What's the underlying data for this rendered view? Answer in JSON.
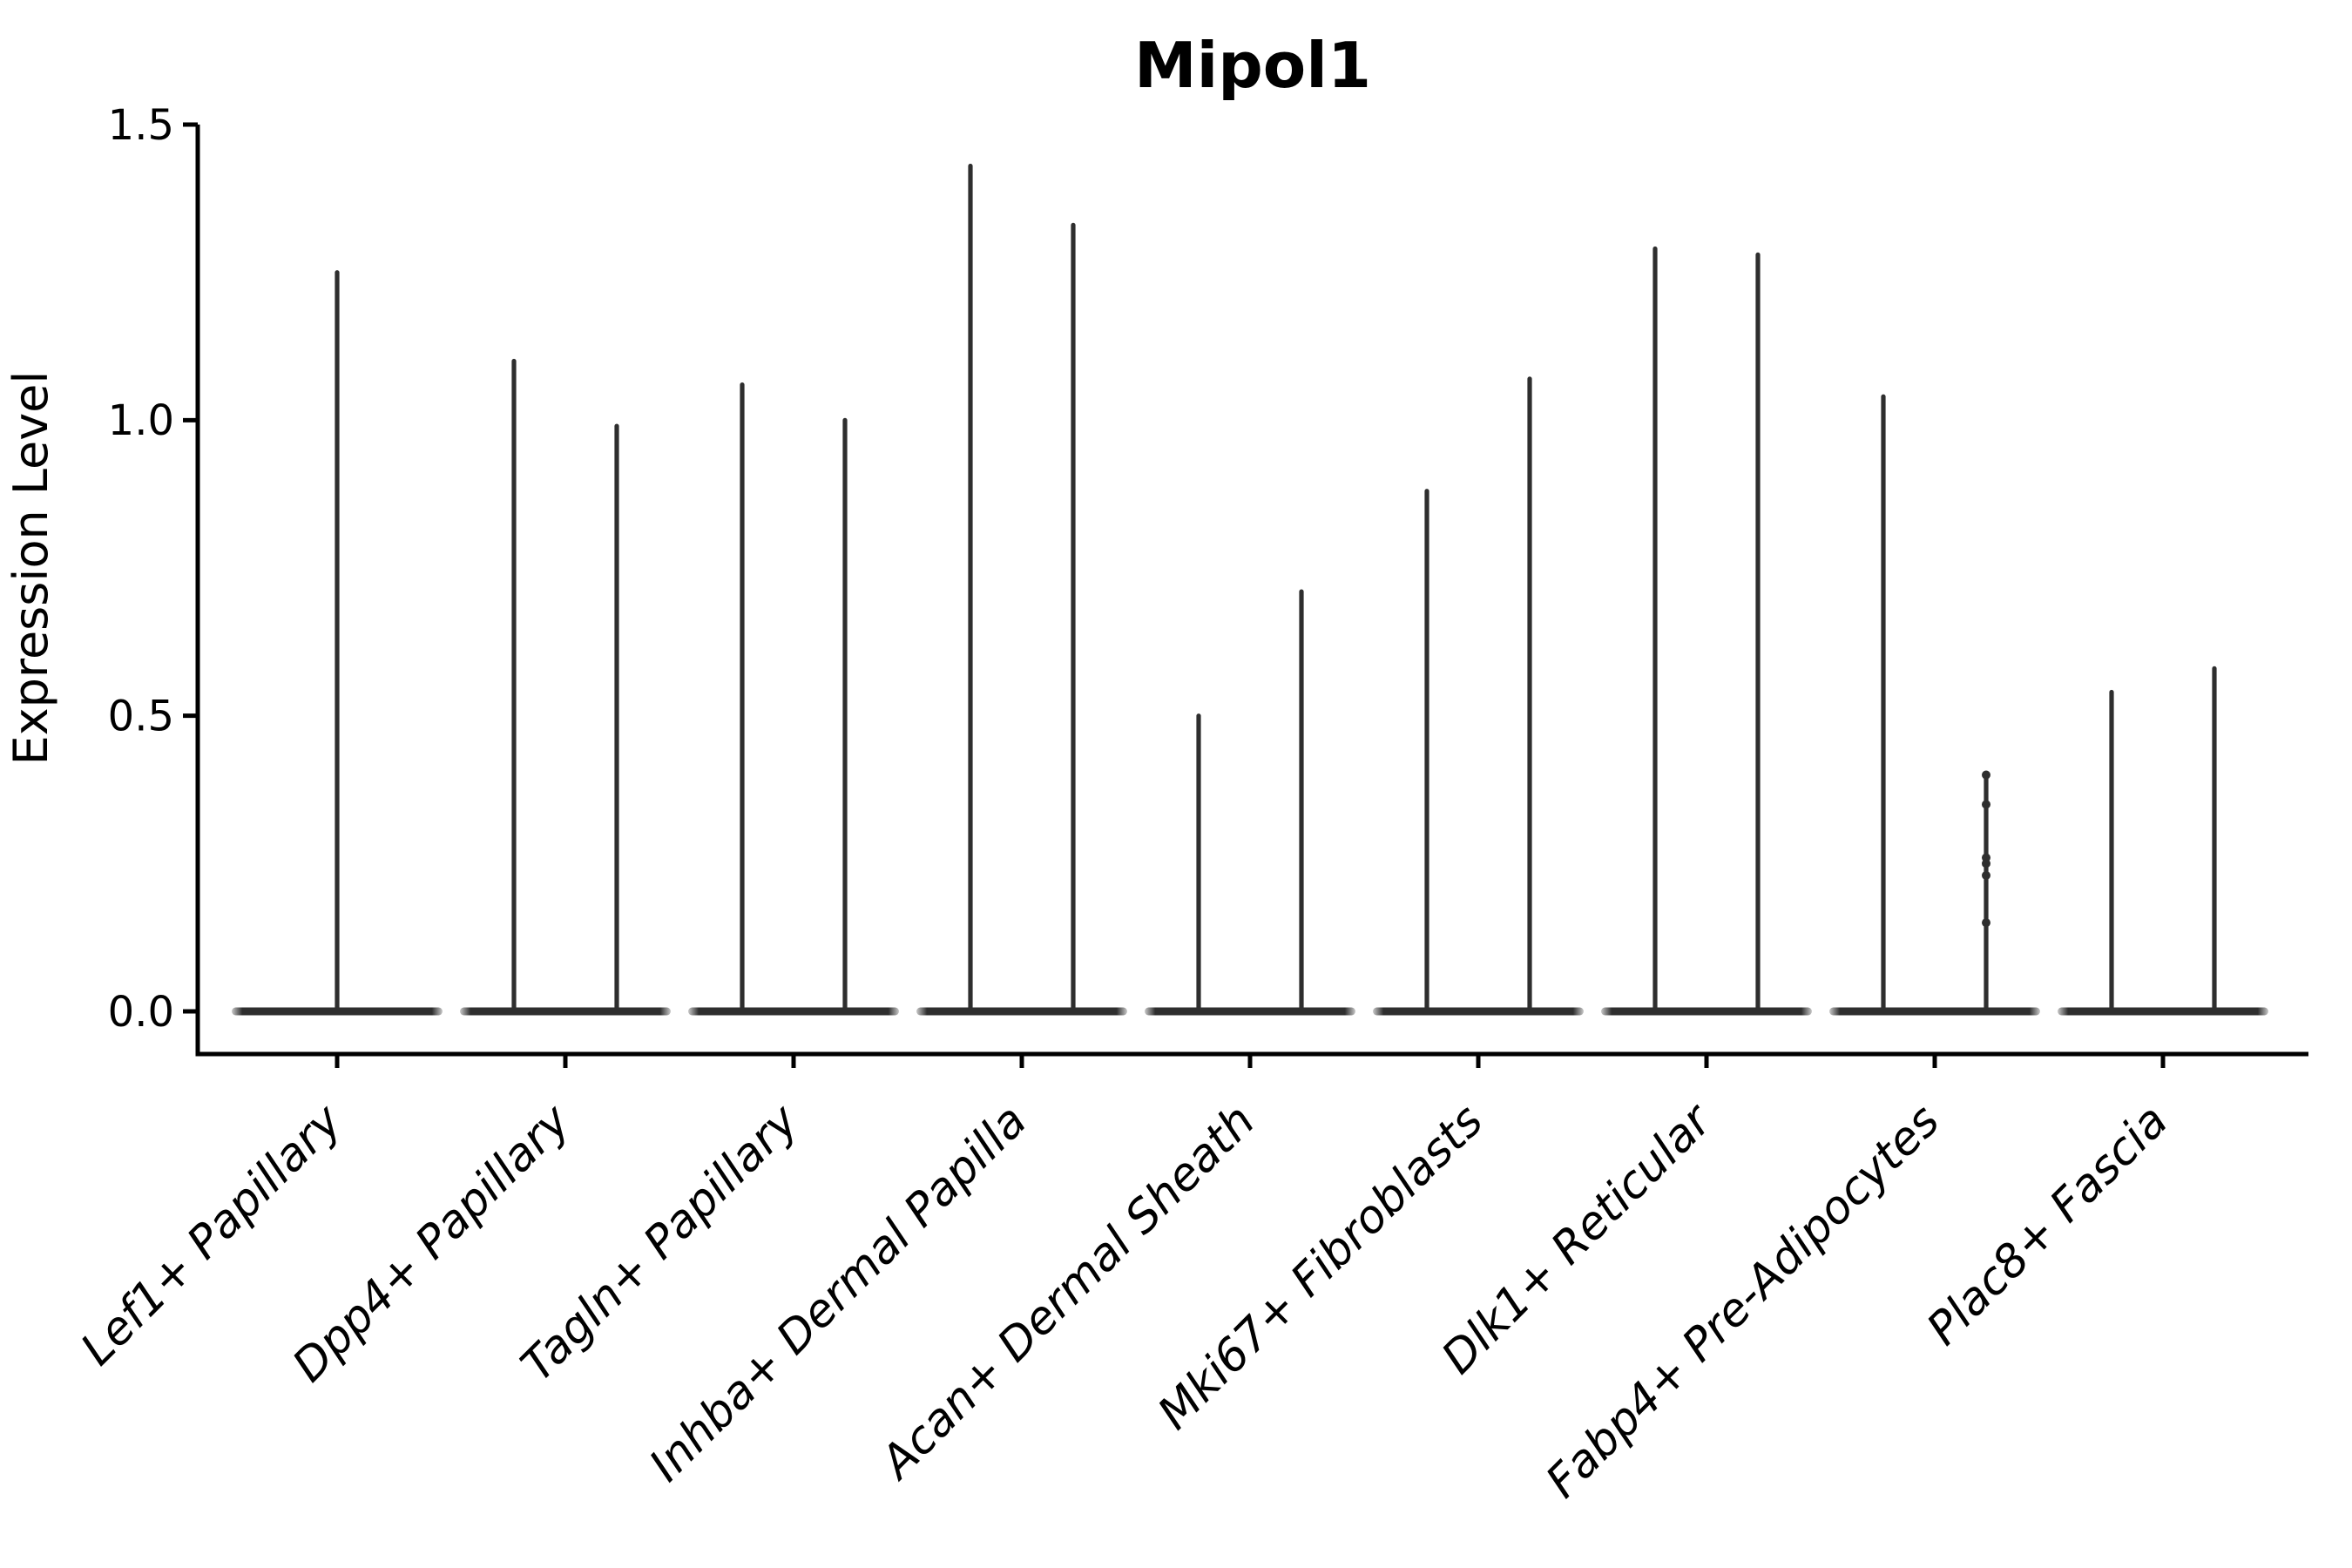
{
  "chart_data": {
    "type": "violin",
    "title": "Mipol1",
    "ylabel": "Expression Level",
    "xlabel": "",
    "ylim": [
      -0.07,
      1.5
    ],
    "grid": false,
    "legend": null,
    "violin_color": "#2e2e2e",
    "axis_color": "#000000",
    "background_color": "#ffffff",
    "yticks": [
      {
        "label": "0.0",
        "value": 0.0
      },
      {
        "label": "0.5",
        "value": 0.5
      },
      {
        "label": "1.0",
        "value": 1.0
      },
      {
        "label": "1.5",
        "value": 1.5
      }
    ],
    "categories": [
      {
        "label": "Lef1+ Papillary",
        "spikes": [
          {
            "offset": 0,
            "max": 1.25
          }
        ]
      },
      {
        "label": "Dpp4+ Papillary",
        "spikes": [
          {
            "offset": -59,
            "max": 1.1
          },
          {
            "offset": 59,
            "max": 0.99
          }
        ]
      },
      {
        "label": "Tagln+ Papillary",
        "spikes": [
          {
            "offset": -59,
            "max": 1.06
          },
          {
            "offset": 59,
            "max": 1.0
          }
        ]
      },
      {
        "label": "Inhba+ Dermal Papilla",
        "spikes": [
          {
            "offset": -59,
            "max": 1.43
          },
          {
            "offset": 59,
            "max": 1.33
          }
        ]
      },
      {
        "label": "Acan+ Dermal Sheath",
        "spikes": [
          {
            "offset": -59,
            "max": 0.5
          },
          {
            "offset": 59,
            "max": 0.71
          }
        ]
      },
      {
        "label": "Mki67+ Fibroblasts",
        "spikes": [
          {
            "offset": -59,
            "max": 0.88
          },
          {
            "offset": 59,
            "max": 1.07
          }
        ]
      },
      {
        "label": "Dlk1+ Reticular",
        "spikes": [
          {
            "offset": -59,
            "max": 1.29
          },
          {
            "offset": 59,
            "max": 1.28
          }
        ]
      },
      {
        "label": "Fabp4+ Pre-Adipocytes",
        "spikes": [
          {
            "offset": -59,
            "max": 1.04
          },
          {
            "offset": 59,
            "max": 0.4
          }
        ],
        "points": [
          {
            "offset": 59,
            "value": 0.4
          },
          {
            "offset": 59,
            "value": 0.35
          },
          {
            "offset": 59,
            "value": 0.26
          },
          {
            "offset": 59,
            "value": 0.25
          },
          {
            "offset": 59,
            "value": 0.23
          },
          {
            "offset": 59,
            "value": 0.15
          }
        ]
      },
      {
        "label": "Plac8+ Fascia",
        "spikes": [
          {
            "offset": -59,
            "max": 0.54
          },
          {
            "offset": 59,
            "max": 0.58
          }
        ]
      }
    ]
  }
}
